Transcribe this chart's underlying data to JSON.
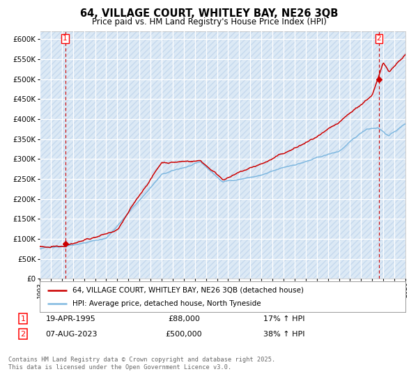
{
  "title": "64, VILLAGE COURT, WHITLEY BAY, NE26 3QB",
  "subtitle": "Price paid vs. HM Land Registry's House Price Index (HPI)",
  "title_fontsize": 10.5,
  "subtitle_fontsize": 8.5,
  "background_color": "#dce9f5",
  "fig_bg_color": "#ffffff",
  "grid_color": "#ffffff",
  "hpi_line_color": "#7fb8e0",
  "price_line_color": "#cc0000",
  "dashed_line_color": "#cc0000",
  "marker_color": "#cc0000",
  "hatch_color": "#c5d9ee",
  "ylim": [
    0,
    620000
  ],
  "ytick_step": 50000,
  "legend_entry1": "64, VILLAGE COURT, WHITLEY BAY, NE26 3QB (detached house)",
  "legend_entry2": "HPI: Average price, detached house, North Tyneside",
  "annotation1_date": "19-APR-1995",
  "annotation1_price": "£88,000",
  "annotation1_hpi": "17% ↑ HPI",
  "annotation1_year": 1995.3,
  "annotation1_value": 88000,
  "annotation2_date": "07-AUG-2023",
  "annotation2_price": "£500,000",
  "annotation2_hpi": "38% ↑ HPI",
  "annotation2_year": 2023.6,
  "annotation2_value": 500000,
  "footer": "Contains HM Land Registry data © Crown copyright and database right 2025.\nThis data is licensed under the Open Government Licence v3.0.",
  "xmin": 1993,
  "xmax": 2026
}
